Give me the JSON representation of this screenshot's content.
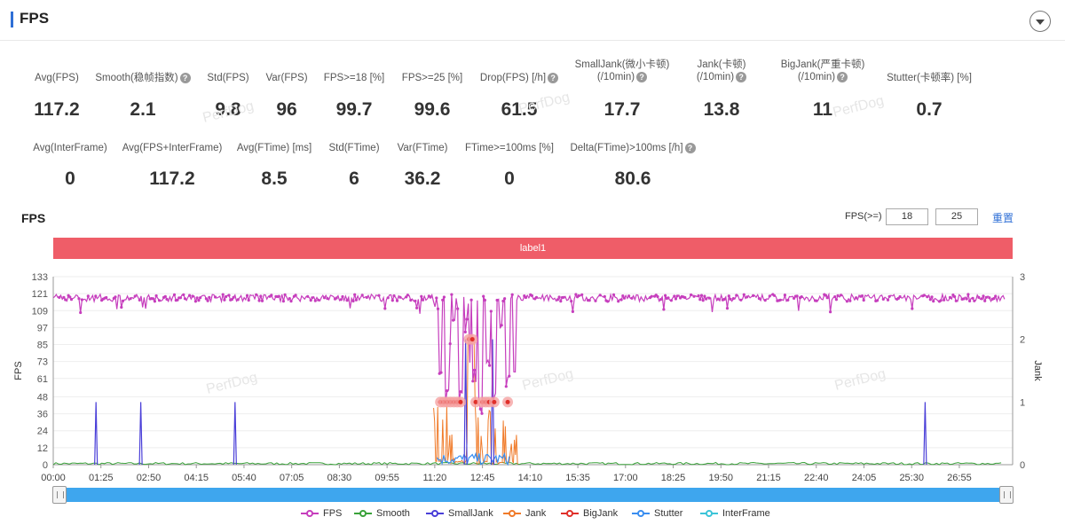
{
  "header": {
    "title": "FPS"
  },
  "metrics_row1": [
    {
      "label": "Avg(FPS)",
      "value": "117.2",
      "help": false
    },
    {
      "label": "Smooth(稳帧指数)",
      "value": "2.1",
      "help": true
    },
    {
      "label": "Std(FPS)",
      "value": "9.8",
      "help": false
    },
    {
      "label": "Var(FPS)",
      "value": "96",
      "help": false
    },
    {
      "label": "FPS>=18 [%]",
      "value": "99.7",
      "help": false
    },
    {
      "label": "FPS>=25 [%]",
      "value": "99.6",
      "help": false
    },
    {
      "label": "Drop(FPS) [/h]",
      "value": "61.5",
      "help": true
    },
    {
      "label": "SmallJank(微小卡顿)",
      "label2": "(/10min)",
      "value": "17.7",
      "help": true
    },
    {
      "label": "Jank(卡顿)",
      "label2": "(/10min)",
      "value": "13.8",
      "help": true
    },
    {
      "label": "BigJank(严重卡顿)",
      "label2": "(/10min)",
      "value": "11",
      "help": true
    },
    {
      "label": "Stutter(卡顿率) [%]",
      "value": "0.7",
      "help": false
    }
  ],
  "metrics_row2": [
    {
      "label": "Avg(InterFrame)",
      "value": "0",
      "help": false
    },
    {
      "label": "Avg(FPS+InterFrame)",
      "value": "117.2",
      "help": false
    },
    {
      "label": "Avg(FTime) [ms]",
      "value": "8.5",
      "help": false
    },
    {
      "label": "Std(FTime)",
      "value": "6",
      "help": false
    },
    {
      "label": "Var(FTime)",
      "value": "36.2",
      "help": false
    },
    {
      "label": "FTime>=100ms [%]",
      "value": "0",
      "help": false
    },
    {
      "label": "Delta(FTime)>100ms [/h]",
      "value": "80.6",
      "help": true
    }
  ],
  "watermark": "PerfDog",
  "help_glyph": "?",
  "section": {
    "title": "FPS",
    "threshold_label": "FPS(>=)",
    "threshold1": "18",
    "threshold2": "25",
    "reset_label": "重置"
  },
  "label_bar": {
    "text": "label1",
    "color": "#ef5d68"
  },
  "chart_data": {
    "type": "line",
    "y_left": {
      "label": "FPS",
      "ticks": [
        0,
        12,
        24,
        36,
        48,
        61,
        73,
        85,
        97,
        109,
        121,
        133
      ],
      "range": [
        0,
        133
      ]
    },
    "y_right": {
      "label": "Jank",
      "ticks": [
        0,
        1,
        2,
        3
      ],
      "range": [
        0,
        3
      ]
    },
    "x_ticks": [
      "00:00",
      "01:25",
      "02:50",
      "04:15",
      "05:40",
      "07:05",
      "08:30",
      "09:55",
      "11:20",
      "12:45",
      "14:10",
      "15:35",
      "17:00",
      "18:25",
      "19:50",
      "21:15",
      "22:40",
      "24:05",
      "25:30",
      "26:55"
    ],
    "x_range_seconds": [
      0,
      1720
    ],
    "series": [
      {
        "name": "FPS",
        "color": "#c63ebd",
        "baseline": 118,
        "dips": [
          [
            11.5,
            60
          ],
          [
            11.7,
            40
          ],
          [
            11.9,
            90
          ],
          [
            12.1,
            45
          ],
          [
            12.3,
            100
          ],
          [
            12.5,
            55
          ],
          [
            12.7,
            35
          ],
          [
            12.9,
            70
          ],
          [
            13.1,
            40
          ],
          [
            13.3,
            95
          ],
          [
            13.5,
            50
          ],
          [
            13.7,
            60
          ]
        ]
      },
      {
        "name": "Smooth",
        "color": "#3aa23a"
      },
      {
        "name": "SmallJank",
        "color": "#4a3fd8",
        "spikes": [
          [
            1.27,
            1
          ],
          [
            2.6,
            1
          ],
          [
            5.4,
            1
          ],
          [
            12.25,
            2
          ],
          [
            13.05,
            2
          ],
          [
            25.9,
            1
          ]
        ]
      },
      {
        "name": "Jank",
        "color": "#f07b2a"
      },
      {
        "name": "BigJank",
        "color": "#e0302a",
        "markers": [
          [
            11.5,
            1
          ],
          [
            11.6,
            1
          ],
          [
            11.7,
            1
          ],
          [
            11.8,
            1
          ],
          [
            11.9,
            1
          ],
          [
            12.0,
            1
          ],
          [
            12.1,
            1
          ],
          [
            12.35,
            2
          ],
          [
            12.45,
            2
          ],
          [
            12.55,
            1
          ],
          [
            12.75,
            1
          ],
          [
            12.85,
            1
          ],
          [
            12.95,
            1
          ],
          [
            13.1,
            1
          ],
          [
            13.5,
            1
          ]
        ]
      },
      {
        "name": "Stutter",
        "color": "#3a8ef0"
      },
      {
        "name": "InterFrame",
        "color": "#3cc4d8"
      }
    ],
    "legend_position": "bottom",
    "grid": true
  }
}
